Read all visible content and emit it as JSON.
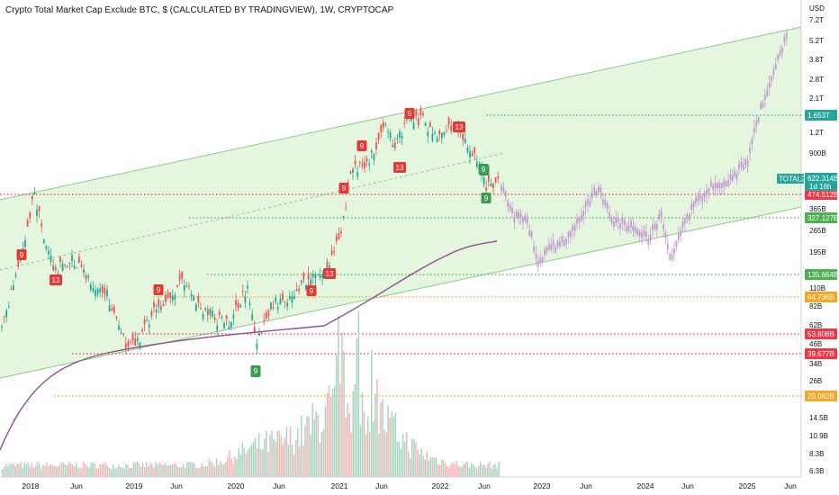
{
  "chart_data": {
    "type": "line",
    "title": "Crypto Total Market Cap Exclude BTC, $ (CALCULATED BY TRADINGVIEW), 1W, CRYPTOCAP",
    "currency_label": "USD",
    "scale": "log",
    "x_tick_labels": [
      "2018",
      "Jun",
      "2019",
      "Jun",
      "2020",
      "Jun",
      "2021",
      "Jun",
      "2022",
      "Jun",
      "2023",
      "Jun",
      "2024",
      "Jun",
      "2025",
      "Jun"
    ],
    "y_tick_labels": [
      "7.2T",
      "5.2T",
      "3.8T",
      "2.8T",
      "2.1T",
      "1.2T",
      "900B",
      "365B",
      "265B",
      "195B",
      "110B",
      "82B",
      "62B",
      "46B",
      "34B",
      "26B",
      "14.5B",
      "10.9B",
      "8.3B",
      "6.3B"
    ],
    "price_levels": [
      {
        "label": "1.653T",
        "color": "#26a69a"
      },
      {
        "label": "474.512B",
        "color": "#f23645"
      },
      {
        "label": "327.127B",
        "color": "#4caf50"
      },
      {
        "label": "135.664B",
        "color": "#4caf50"
      },
      {
        "label": "94.736B",
        "color": "#f5a623"
      },
      {
        "label": "53.808B",
        "color": "#f23645"
      },
      {
        "label": "39.677B",
        "color": "#f23645"
      },
      {
        "label": "20.082B",
        "color": "#f5a623"
      }
    ],
    "current": {
      "symbol": "TOTAL2",
      "price": "622.314B",
      "countdown": "1d 16h"
    },
    "sequential_markers": [
      {
        "label": "9",
        "type": "buy"
      },
      {
        "label": "9",
        "type": "buy"
      },
      {
        "label": "9",
        "type": "buy"
      },
      {
        "label": "9",
        "type": "sell"
      },
      {
        "label": "13",
        "type": "sell"
      },
      {
        "label": "9",
        "type": "sell"
      },
      {
        "label": "9",
        "type": "sell"
      },
      {
        "label": "13",
        "type": "sell"
      },
      {
        "label": "9",
        "type": "sell"
      },
      {
        "label": "13",
        "type": "sell"
      },
      {
        "label": "9",
        "type": "sell"
      },
      {
        "label": "9",
        "type": "sell"
      },
      {
        "label": "13",
        "type": "sell"
      },
      {
        "label": "9",
        "type": "buy"
      },
      {
        "label": "9",
        "type": "buy"
      }
    ],
    "colors": {
      "up": "#26a69a",
      "down": "#ef5350",
      "projection": "#c39bd3",
      "ma": "#8e4f93",
      "channel_fill": "#dff5d8",
      "channel_line": "#8bc98b"
    }
  }
}
